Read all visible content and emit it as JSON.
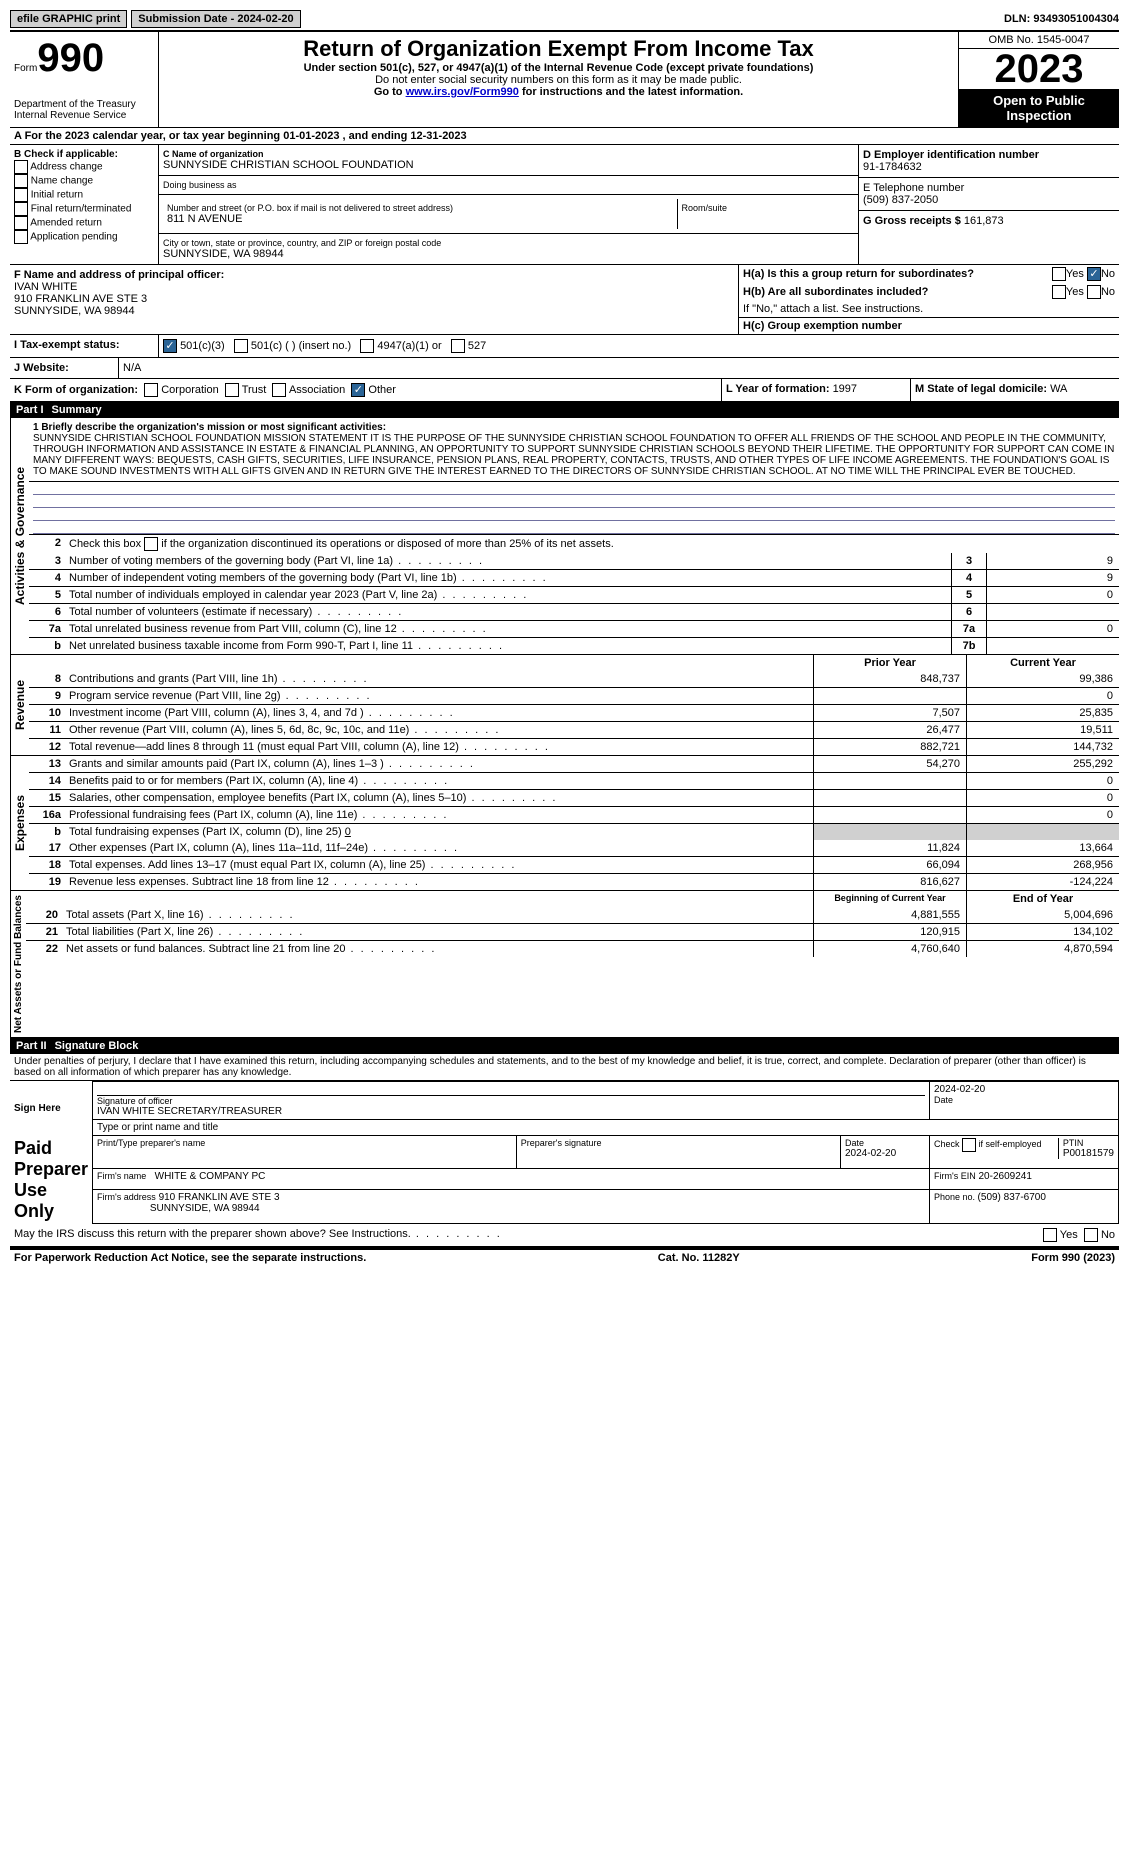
{
  "topbar": {
    "efile": "efile GRAPHIC print",
    "submission_label": "Submission Date - ",
    "submission_date": "2024-02-20",
    "dln_label": "DLN: ",
    "dln": "93493051004304"
  },
  "header": {
    "form_prefix": "Form",
    "form_number": "990",
    "dept": "Department of the Treasury",
    "irs": "Internal Revenue Service",
    "title": "Return of Organization Exempt From Income Tax",
    "sub1": "Under section 501(c), 527, or 4947(a)(1) of the Internal Revenue Code (except private foundations)",
    "sub2": "Do not enter social security numbers on this form as it may be made public.",
    "sub3_prefix": "Go to ",
    "sub3_link": "www.irs.gov/Form990",
    "sub3_suffix": " for instructions and the latest information.",
    "omb": "OMB No. 1545-0047",
    "year": "2023",
    "open": "Open to Public Inspection"
  },
  "row_a": {
    "prefix": "A For the 2023 calendar year, or tax year beginning ",
    "begin": "01-01-2023",
    "mid": "  , and ending ",
    "end": "12-31-2023"
  },
  "section_b": {
    "label": "B Check if applicable:",
    "items": [
      "Address change",
      "Name change",
      "Initial return",
      "Final return/terminated",
      "Amended return",
      "Application pending"
    ]
  },
  "section_c": {
    "name_label": "C Name of organization",
    "name": "SUNNYSIDE CHRISTIAN SCHOOL FOUNDATION",
    "dba_label": "Doing business as",
    "dba": "",
    "street_label": "Number and street (or P.O. box if mail is not delivered to street address)",
    "room_label": "Room/suite",
    "street": "811 N AVENUE",
    "city_label": "City or town, state or province, country, and ZIP or foreign postal code",
    "city": "SUNNYSIDE, WA  98944"
  },
  "section_d": {
    "label": "D Employer identification number",
    "value": "91-1784632"
  },
  "section_e": {
    "label": "E Telephone number",
    "value": "(509) 837-2050"
  },
  "section_g": {
    "label": "G Gross receipts $ ",
    "value": "161,873"
  },
  "section_f": {
    "label": "F Name and address of principal officer:",
    "name": "IVAN WHITE",
    "addr1": "910 FRANKLIN AVE STE 3",
    "addr2": "SUNNYSIDE, WA  98944"
  },
  "section_h": {
    "ha_label": "H(a)  Is this a group return for subordinates?",
    "hb_label": "H(b)  Are all subordinates included?",
    "hb_note": "If \"No,\" attach a list. See instructions.",
    "hc_label": "H(c)  Group exemption number",
    "yes": "Yes",
    "no": "No"
  },
  "section_i": {
    "label": "I   Tax-exempt status:",
    "opt1": "501(c)(3)",
    "opt2": "501(c) (  ) (insert no.)",
    "opt3": "4947(a)(1) or",
    "opt4": "527"
  },
  "section_j": {
    "label": "J   Website:",
    "value": "N/A"
  },
  "section_k": {
    "label": "K Form of organization:",
    "opts": [
      "Corporation",
      "Trust",
      "Association",
      "Other"
    ]
  },
  "section_l": {
    "label": "L Year of formation: ",
    "value": "1997"
  },
  "section_m": {
    "label": "M State of legal domicile: ",
    "value": "WA"
  },
  "part1": {
    "num": "Part I",
    "title": "Summary"
  },
  "mission": {
    "label": "1  Briefly describe the organization's mission or most significant activities:",
    "text": "SUNNYSIDE CHRISTIAN SCHOOL FOUNDATION MISSION STATEMENT IT IS THE PURPOSE OF THE SUNNYSIDE CHRISTIAN SCHOOL FOUNDATION TO OFFER ALL FRIENDS OF THE SCHOOL AND PEOPLE IN THE COMMUNITY, THROUGH INFORMATION AND ASSISTANCE IN ESTATE & FINANCIAL PLANNING, AN OPPORTUNITY TO SUPPORT SUNNYSIDE CHRISTIAN SCHOOLS BEYOND THEIR LIFETIME. THE OPPORTUNITY FOR SUPPORT CAN COME IN MANY DIFFERENT WAYS: BEQUESTS, CASH GIFTS, SECURITIES, LIFE INSURANCE, PENSION PLANS, REAL PROPERTY, CONTACTS, TRUSTS, AND OTHER TYPES OF LIFE INCOME AGREEMENTS. THE FOUNDATION'S GOAL IS TO MAKE SOUND INVESTMENTS WITH ALL GIFTS GIVEN AND IN RETURN GIVE THE INTEREST EARNED TO THE DIRECTORS OF SUNNYSIDE CHRISTIAN SCHOOL. AT NO TIME WILL THE PRINCIPAL EVER BE TOUCHED."
  },
  "governance": {
    "label": "Activities & Governance",
    "line2": "Check this box      if the organization discontinued its operations or disposed of more than 25% of its net assets.",
    "rows": [
      {
        "n": "3",
        "t": "Number of voting members of the governing body (Part VI, line 1a)",
        "box": "3",
        "v": "9"
      },
      {
        "n": "4",
        "t": "Number of independent voting members of the governing body (Part VI, line 1b)",
        "box": "4",
        "v": "9"
      },
      {
        "n": "5",
        "t": "Total number of individuals employed in calendar year 2023 (Part V, line 2a)",
        "box": "5",
        "v": "0"
      },
      {
        "n": "6",
        "t": "Total number of volunteers (estimate if necessary)",
        "box": "6",
        "v": ""
      },
      {
        "n": "7a",
        "t": "Total unrelated business revenue from Part VIII, column (C), line 12",
        "box": "7a",
        "v": "0"
      },
      {
        "n": "b",
        "t": "Net unrelated business taxable income from Form 990-T, Part I, line 11",
        "box": "7b",
        "v": ""
      }
    ]
  },
  "revenue": {
    "label": "Revenue",
    "hdr_prior": "Prior Year",
    "hdr_curr": "Current Year",
    "rows": [
      {
        "n": "8",
        "t": "Contributions and grants (Part VIII, line 1h)",
        "p": "848,737",
        "c": "99,386"
      },
      {
        "n": "9",
        "t": "Program service revenue (Part VIII, line 2g)",
        "p": "",
        "c": "0"
      },
      {
        "n": "10",
        "t": "Investment income (Part VIII, column (A), lines 3, 4, and 7d )",
        "p": "7,507",
        "c": "25,835"
      },
      {
        "n": "11",
        "t": "Other revenue (Part VIII, column (A), lines 5, 6d, 8c, 9c, 10c, and 11e)",
        "p": "26,477",
        "c": "19,511"
      },
      {
        "n": "12",
        "t": "Total revenue—add lines 8 through 11 (must equal Part VIII, column (A), line 12)",
        "p": "882,721",
        "c": "144,732"
      }
    ]
  },
  "expenses": {
    "label": "Expenses",
    "rows": [
      {
        "n": "13",
        "t": "Grants and similar amounts paid (Part IX, column (A), lines 1–3 )",
        "p": "54,270",
        "c": "255,292"
      },
      {
        "n": "14",
        "t": "Benefits paid to or for members (Part IX, column (A), line 4)",
        "p": "",
        "c": "0"
      },
      {
        "n": "15",
        "t": "Salaries, other compensation, employee benefits (Part IX, column (A), lines 5–10)",
        "p": "",
        "c": "0"
      },
      {
        "n": "16a",
        "t": "Professional fundraising fees (Part IX, column (A), line 11e)",
        "p": "",
        "c": "0"
      }
    ],
    "line_b": "Total fundraising expenses (Part IX, column (D), line 25) ",
    "line_b_val": "0",
    "rows2": [
      {
        "n": "17",
        "t": "Other expenses (Part IX, column (A), lines 11a–11d, 11f–24e)",
        "p": "11,824",
        "c": "13,664"
      },
      {
        "n": "18",
        "t": "Total expenses. Add lines 13–17 (must equal Part IX, column (A), line 25)",
        "p": "66,094",
        "c": "268,956"
      },
      {
        "n": "19",
        "t": "Revenue less expenses. Subtract line 18 from line 12",
        "p": "816,627",
        "c": "-124,224"
      }
    ]
  },
  "netassets": {
    "label": "Net Assets or Fund Balances",
    "hdr_begin": "Beginning of Current Year",
    "hdr_end": "End of Year",
    "rows": [
      {
        "n": "20",
        "t": "Total assets (Part X, line 16)",
        "p": "4,881,555",
        "c": "5,004,696"
      },
      {
        "n": "21",
        "t": "Total liabilities (Part X, line 26)",
        "p": "120,915",
        "c": "134,102"
      },
      {
        "n": "22",
        "t": "Net assets or fund balances. Subtract line 21 from line 20",
        "p": "4,760,640",
        "c": "4,870,594"
      }
    ]
  },
  "part2": {
    "num": "Part II",
    "title": "Signature Block"
  },
  "perjury": "Under penalties of perjury, I declare that I have examined this return, including accompanying schedules and statements, and to the best of my knowledge and belief, it is true, correct, and complete. Declaration of preparer (other than officer) is based on all information of which preparer has any knowledge.",
  "sign": {
    "here": "Sign Here",
    "sig_officer": "Signature of officer",
    "date_label": "Date",
    "date": "2024-02-20",
    "name_title": "IVAN WHITE  SECRETARY/TREASURER",
    "type_label": "Type or print name and title"
  },
  "preparer": {
    "label": "Paid Preparer Use Only",
    "name_hdr": "Print/Type preparer's name",
    "sig_hdr": "Preparer's signature",
    "date_hdr": "Date",
    "date": "2024-02-20",
    "check_hdr": "Check      if self-employed",
    "ptin_hdr": "PTIN",
    "ptin": "P00181579",
    "firm_name_label": "Firm's name",
    "firm_name": "WHITE & COMPANY PC",
    "firm_ein_label": "Firm's EIN",
    "firm_ein": "20-2609241",
    "firm_addr_label": "Firm's address",
    "firm_addr1": "910 FRANKLIN AVE STE 3",
    "firm_addr2": "SUNNYSIDE, WA  98944",
    "phone_label": "Phone no. ",
    "phone": "(509) 837-6700"
  },
  "may_irs": "May the IRS discuss this return with the preparer shown above? See Instructions.",
  "footer": {
    "left": "For Paperwork Reduction Act Notice, see the separate instructions.",
    "mid": "Cat. No. 11282Y",
    "right": "Form 990 (2023)"
  }
}
